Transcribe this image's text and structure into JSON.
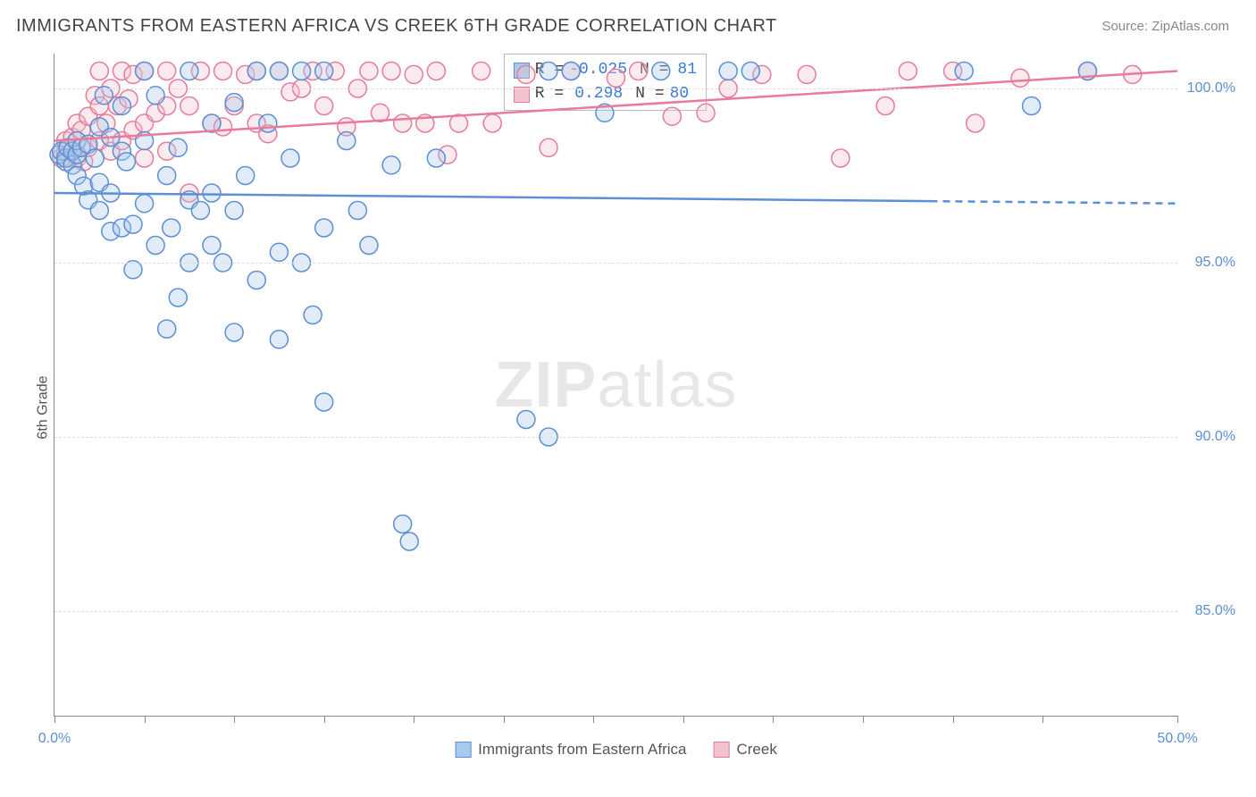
{
  "title": "IMMIGRANTS FROM EASTERN AFRICA VS CREEK 6TH GRADE CORRELATION CHART",
  "source": "Source: ZipAtlas.com",
  "ylabel": "6th Grade",
  "watermark": {
    "bold": "ZIP",
    "rest": "atlas"
  },
  "chart": {
    "type": "scatter",
    "background_color": "#ffffff",
    "grid_color": "#dddddd",
    "axis_color": "#888888",
    "xlim": [
      0,
      50
    ],
    "ylim": [
      82,
      101
    ],
    "xtick_label_left": "0.0%",
    "xtick_label_right": "50.0%",
    "xticks": [
      0,
      4,
      8,
      12,
      16,
      20,
      24,
      28,
      32,
      36,
      40,
      44,
      50
    ],
    "yticks": [
      {
        "value": 100,
        "label": "100.0%"
      },
      {
        "value": 95,
        "label": "95.0%"
      },
      {
        "value": 90,
        "label": "90.0%"
      },
      {
        "value": 85,
        "label": "85.0%"
      }
    ],
    "marker_radius": 10,
    "series": [
      {
        "name": "Immigrants from Eastern Africa",
        "color_fill": "#a8c8ec",
        "color_stroke": "#5b8fd6",
        "R": "-0.025",
        "N": "81",
        "trend": {
          "y_start": 97.0,
          "y_end": 96.7,
          "dash_from_x": 39
        },
        "points": [
          [
            0.2,
            98.1
          ],
          [
            0.3,
            98.2
          ],
          [
            0.5,
            97.9
          ],
          [
            0.5,
            98.0
          ],
          [
            0.6,
            98.3
          ],
          [
            0.8,
            97.8
          ],
          [
            0.8,
            98.2
          ],
          [
            1.0,
            98.1
          ],
          [
            1.0,
            97.5
          ],
          [
            1.0,
            98.5
          ],
          [
            1.2,
            98.3
          ],
          [
            1.3,
            97.2
          ],
          [
            1.5,
            98.4
          ],
          [
            1.5,
            96.8
          ],
          [
            1.8,
            98.0
          ],
          [
            2.0,
            98.9
          ],
          [
            2.0,
            97.3
          ],
          [
            2.0,
            96.5
          ],
          [
            2.2,
            99.8
          ],
          [
            2.5,
            98.6
          ],
          [
            2.5,
            97.0
          ],
          [
            2.5,
            95.9
          ],
          [
            3.0,
            99.5
          ],
          [
            3.0,
            96.0
          ],
          [
            3.0,
            98.2
          ],
          [
            3.2,
            97.9
          ],
          [
            3.5,
            96.1
          ],
          [
            3.5,
            94.8
          ],
          [
            4.0,
            100.5
          ],
          [
            4.0,
            98.5
          ],
          [
            4.0,
            96.7
          ],
          [
            4.5,
            99.8
          ],
          [
            4.5,
            95.5
          ],
          [
            5.0,
            97.5
          ],
          [
            5.0,
            93.1
          ],
          [
            5.2,
            96.0
          ],
          [
            5.5,
            98.3
          ],
          [
            5.5,
            94.0
          ],
          [
            6.0,
            100.5
          ],
          [
            6.0,
            96.8
          ],
          [
            6.0,
            95.0
          ],
          [
            6.5,
            96.5
          ],
          [
            7.0,
            99.0
          ],
          [
            7.0,
            97.0
          ],
          [
            7.0,
            95.5
          ],
          [
            7.5,
            95.0
          ],
          [
            8.0,
            99.6
          ],
          [
            8.0,
            96.5
          ],
          [
            8.0,
            93.0
          ],
          [
            8.5,
            97.5
          ],
          [
            9.0,
            100.5
          ],
          [
            9.0,
            94.5
          ],
          [
            9.5,
            99.0
          ],
          [
            10.0,
            100.5
          ],
          [
            10.0,
            95.3
          ],
          [
            10.0,
            92.8
          ],
          [
            10.5,
            98.0
          ],
          [
            11.0,
            100.5
          ],
          [
            11.0,
            95.0
          ],
          [
            11.5,
            93.5
          ],
          [
            12.0,
            100.5
          ],
          [
            12.0,
            96.0
          ],
          [
            12.0,
            91.0
          ],
          [
            13.0,
            98.5
          ],
          [
            13.5,
            96.5
          ],
          [
            14.0,
            95.5
          ],
          [
            15.0,
            97.8
          ],
          [
            15.5,
            87.5
          ],
          [
            15.8,
            87.0
          ],
          [
            17.0,
            98.0
          ],
          [
            21.0,
            90.5
          ],
          [
            22.0,
            90.0
          ],
          [
            22.0,
            100.5
          ],
          [
            23.0,
            100.5
          ],
          [
            24.5,
            99.3
          ],
          [
            27.0,
            100.5
          ],
          [
            30.0,
            100.5
          ],
          [
            31.0,
            100.5
          ],
          [
            40.5,
            100.5
          ],
          [
            43.5,
            99.5
          ],
          [
            46.0,
            100.5
          ]
        ]
      },
      {
        "name": "Creek",
        "color_fill": "#f4c2cd",
        "color_stroke": "#e87b99",
        "R": "0.298",
        "N": "80",
        "trend": {
          "y_start": 98.5,
          "y_end": 100.5,
          "dash_from_x": null
        },
        "points": [
          [
            0.3,
            98.0
          ],
          [
            0.5,
            98.2
          ],
          [
            0.5,
            98.5
          ],
          [
            0.7,
            98.0
          ],
          [
            0.8,
            98.6
          ],
          [
            1.0,
            98.0
          ],
          [
            1.0,
            99.0
          ],
          [
            1.2,
            98.8
          ],
          [
            1.3,
            97.9
          ],
          [
            1.5,
            98.3
          ],
          [
            1.5,
            99.2
          ],
          [
            1.8,
            99.8
          ],
          [
            2.0,
            98.5
          ],
          [
            2.0,
            99.5
          ],
          [
            2.0,
            100.5
          ],
          [
            2.3,
            99.0
          ],
          [
            2.5,
            98.2
          ],
          [
            2.5,
            100.0
          ],
          [
            2.8,
            99.5
          ],
          [
            3.0,
            100.5
          ],
          [
            3.0,
            98.5
          ],
          [
            3.3,
            99.7
          ],
          [
            3.5,
            100.4
          ],
          [
            3.5,
            98.8
          ],
          [
            4.0,
            99.0
          ],
          [
            4.0,
            100.5
          ],
          [
            4.0,
            98.0
          ],
          [
            4.5,
            99.3
          ],
          [
            5.0,
            100.5
          ],
          [
            5.0,
            99.5
          ],
          [
            5.0,
            98.2
          ],
          [
            5.5,
            100.0
          ],
          [
            6.0,
            99.5
          ],
          [
            6.0,
            97.0
          ],
          [
            6.5,
            100.5
          ],
          [
            7.0,
            99.0
          ],
          [
            7.5,
            100.5
          ],
          [
            7.5,
            98.9
          ],
          [
            8.0,
            99.5
          ],
          [
            8.5,
            100.4
          ],
          [
            9.0,
            100.5
          ],
          [
            9.0,
            99.0
          ],
          [
            9.5,
            98.7
          ],
          [
            10.0,
            100.5
          ],
          [
            10.5,
            99.9
          ],
          [
            11.0,
            100.0
          ],
          [
            11.5,
            100.5
          ],
          [
            12.0,
            99.5
          ],
          [
            12.5,
            100.5
          ],
          [
            13.0,
            98.9
          ],
          [
            13.5,
            100.0
          ],
          [
            14.0,
            100.5
          ],
          [
            14.5,
            99.3
          ],
          [
            15.0,
            100.5
          ],
          [
            15.5,
            99.0
          ],
          [
            16.0,
            100.4
          ],
          [
            16.5,
            99.0
          ],
          [
            17.0,
            100.5
          ],
          [
            17.5,
            98.1
          ],
          [
            18.0,
            99.0
          ],
          [
            19.0,
            100.5
          ],
          [
            19.5,
            99.0
          ],
          [
            21.0,
            100.4
          ],
          [
            22.0,
            98.3
          ],
          [
            23.0,
            100.5
          ],
          [
            25.0,
            100.3
          ],
          [
            26.0,
            100.5
          ],
          [
            27.5,
            99.2
          ],
          [
            29.0,
            99.3
          ],
          [
            30.0,
            100.0
          ],
          [
            31.5,
            100.4
          ],
          [
            33.5,
            100.4
          ],
          [
            35.0,
            98.0
          ],
          [
            37.0,
            99.5
          ],
          [
            38.0,
            100.5
          ],
          [
            40.0,
            100.5
          ],
          [
            41.0,
            99.0
          ],
          [
            43.0,
            100.3
          ],
          [
            46.0,
            100.5
          ],
          [
            48.0,
            100.4
          ]
        ]
      }
    ]
  },
  "legend_box": {
    "series_a_label": "R =",
    "series_a_n": "N =",
    "series_b_label": "R =",
    "series_b_n": "N ="
  },
  "bottom_legend": {
    "a": "Immigrants from Eastern Africa",
    "b": "Creek"
  }
}
